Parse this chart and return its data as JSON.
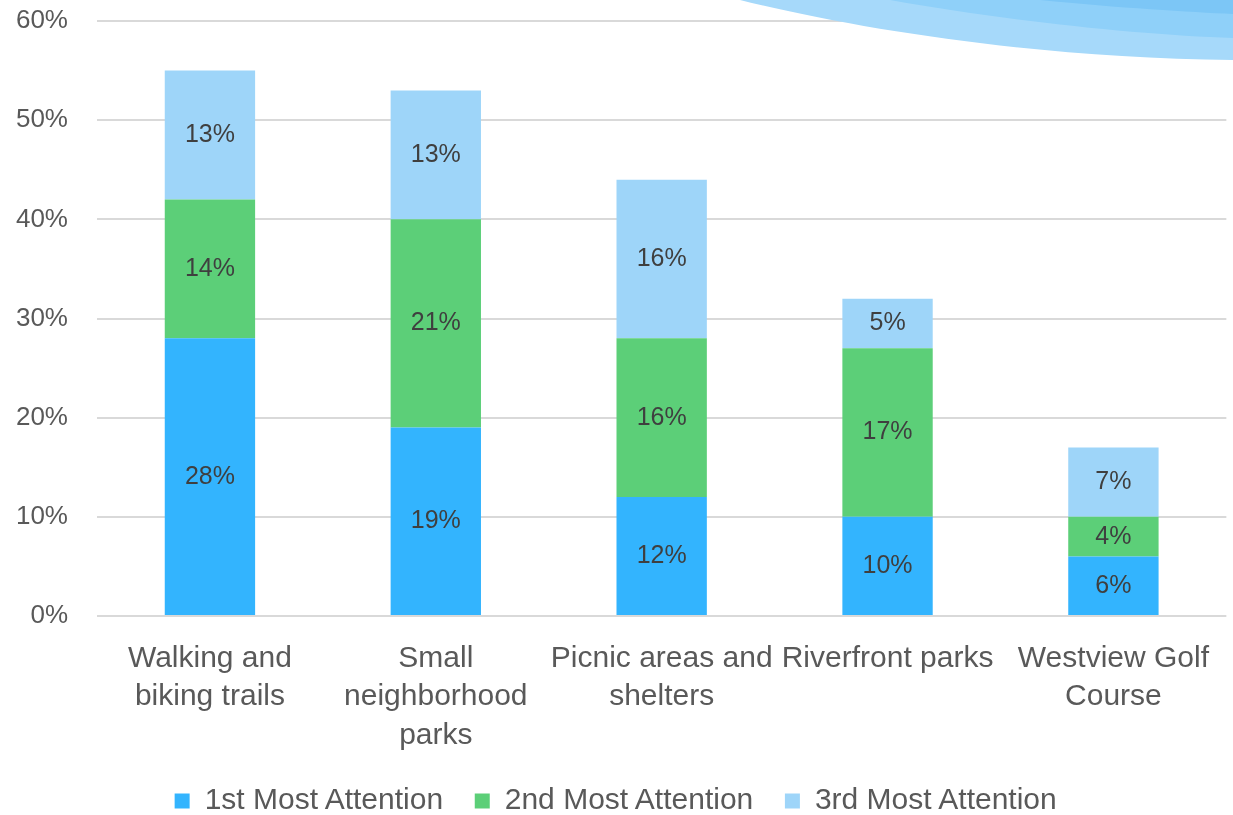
{
  "chart_data": {
    "type": "bar",
    "categories": [
      "Walking and biking trails",
      "Small neighborhood parks",
      "Picnic areas and shelters",
      "Riverfront parks",
      "Westview Golf Course"
    ],
    "series": [
      {
        "name": "1st Most Attention",
        "color": "#33b4fe",
        "values": [
          28,
          19,
          12,
          10,
          6
        ],
        "value_labels": [
          "28%",
          "19%",
          "12%",
          "10%",
          "6%"
        ]
      },
      {
        "name": "2nd Most Attention",
        "color": "#5ccf78",
        "values": [
          14,
          21,
          16,
          17,
          4
        ],
        "value_labels": [
          "14%",
          "21%",
          "16%",
          "17%",
          "4%"
        ]
      },
      {
        "name": "3rd Most Attention",
        "color": "#9ed5f9",
        "values": [
          13,
          13,
          16,
          5,
          7
        ],
        "value_labels": [
          "13%",
          "13%",
          "16%",
          "5%",
          "7%"
        ]
      }
    ],
    "stacked": true,
    "ylim": [
      0,
      60
    ],
    "yticks": [
      {
        "value": 0,
        "label": "0%"
      },
      {
        "value": 10,
        "label": "10%"
      },
      {
        "value": 20,
        "label": "20%"
      },
      {
        "value": 30,
        "label": "30%"
      },
      {
        "value": 40,
        "label": "40%"
      },
      {
        "value": 50,
        "label": "50%"
      },
      {
        "value": 60,
        "label": "60%"
      }
    ],
    "grid": "y",
    "legend": "bottom"
  }
}
